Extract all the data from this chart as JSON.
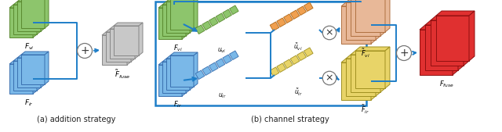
{
  "fig_width": 6.4,
  "fig_height": 1.69,
  "dpi": 100,
  "bg_color": "#ffffff",
  "caption_a": "(a) addition strategy",
  "caption_b": "(b) channel strategy",
  "colors": {
    "green_fill": "#8dc56c",
    "green_edge": "#5a8a30",
    "blue_fill": "#7ab8e8",
    "blue_edge": "#3a70b0",
    "gray_fill": "#c8c8c8",
    "gray_edge": "#888888",
    "orange_fill": "#f0a050",
    "orange_edge": "#b06818",
    "yellow_fill": "#e8d468",
    "yellow_edge": "#a09020",
    "red_fill": "#e03030",
    "red_edge": "#901010",
    "salmon_fill": "#e8b898",
    "salmon_edge": "#b07040",
    "connector": "#1e7ec8"
  },
  "labels": {
    "Fvi_a": "$F_{vi}$",
    "Fir_a": "$F_{ir}$",
    "Ffuse_a": "$\\tilde{F}_{fuse}$",
    "Fvi_b": "$F_{vi}$",
    "Fir_b": "$F_{ir}$",
    "uvi": "$u_{vi}$",
    "uir": "$u_{ir}$",
    "tilde_uvi": "$\\tilde{u}_{vi}$",
    "tilde_uir": "$\\tilde{u}_{ir}$",
    "tilde_Fvi": "$\\tilde{F}_{vi}$",
    "tilde_Fir": "$\\tilde{F}_{ir}$",
    "Ffuse_b": "$F_{fuse}$"
  }
}
